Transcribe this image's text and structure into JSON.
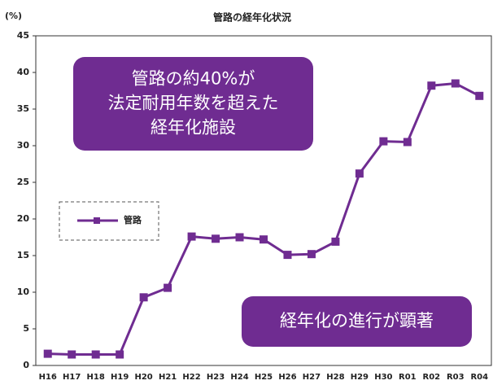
{
  "chart_data": {
    "type": "line",
    "title": "管路の経年化状況",
    "y_label": "(%)",
    "categories": [
      "H16",
      "H17",
      "H18",
      "H19",
      "H20",
      "H21",
      "H22",
      "H23",
      "H24",
      "H25",
      "H26",
      "H27",
      "H28",
      "H29",
      "H30",
      "R01",
      "R02",
      "R03",
      "R04"
    ],
    "series": [
      {
        "name": "管路",
        "color": "#6f2c91",
        "values": [
          1.6,
          1.5,
          1.5,
          1.5,
          9.3,
          10.6,
          17.6,
          17.3,
          17.5,
          17.2,
          15.1,
          15.2,
          16.9,
          26.2,
          30.6,
          30.5,
          38.2,
          38.5,
          36.8
        ]
      }
    ],
    "ylim": [
      0,
      45
    ],
    "yticks": [
      0,
      5,
      10,
      15,
      20,
      25,
      30,
      35,
      40,
      45
    ],
    "grid": false,
    "legend": "left",
    "annotations": [
      [
        "管路の約40%が",
        "法定耐用年数を超えた",
        "経年化施設"
      ],
      [
        "経年化の進行が顕著"
      ]
    ],
    "annotation_color": "#6f2c91"
  }
}
